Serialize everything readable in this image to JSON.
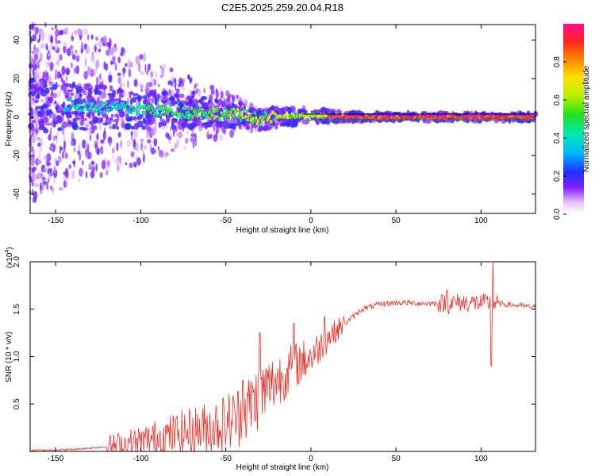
{
  "title": "C2E5.2025.259.20.04.R18",
  "chart_data": [
    {
      "type": "heatmap",
      "xlabel": "Height of straight line (km)",
      "ylabel": "Frequency (Hz)",
      "xlim": [
        -165,
        132
      ],
      "ylim": [
        -50,
        48
      ],
      "x_ticks": [
        -150,
        -100,
        -50,
        0,
        50,
        100
      ],
      "y_ticks": [
        -40,
        -20,
        0,
        20,
        40
      ],
      "colorbar": {
        "label": "Normalized spectral amplitude",
        "range": [
          0,
          1
        ],
        "ticks": [
          0.0,
          0.2,
          0.4,
          0.6,
          0.8
        ]
      },
      "reference_lines_hz": [
        -1.5,
        1.5
      ],
      "ridge": [
        {
          "x": -140,
          "f": 6
        },
        {
          "x": -120,
          "f": 5
        },
        {
          "x": -100,
          "f": 4
        },
        {
          "x": -80,
          "f": 3
        },
        {
          "x": -60,
          "f": 2
        },
        {
          "x": -40,
          "f": 1
        },
        {
          "x": -30,
          "f": -1
        },
        {
          "x": -20,
          "f": 0
        },
        {
          "x": 0,
          "f": 1
        },
        {
          "x": 20,
          "f": 0
        },
        {
          "x": 132,
          "f": 0
        }
      ]
    },
    {
      "type": "line",
      "xlabel": "Height of straight line (km)",
      "ylabel": "SNR (10 * v/v)",
      "y_multiplier_label": "(x10",
      "y_multiplier_exp": "4",
      "y_multiplier_close": ")",
      "xlim": [
        -165,
        132
      ],
      "ylim": [
        0,
        2.0
      ],
      "x_ticks": [
        -150,
        -100,
        -50,
        0,
        50,
        100
      ],
      "y_ticks": [
        0.5,
        1.0,
        1.5,
        2.0
      ],
      "series": [
        {
          "name": "SNR",
          "color": "#e8312a",
          "trend": [
            {
              "x": -165,
              "y": 0.01
            },
            {
              "x": -140,
              "y": 0.02
            },
            {
              "x": -120,
              "y": 0.05
            },
            {
              "x": -100,
              "y": 0.1
            },
            {
              "x": -80,
              "y": 0.18
            },
            {
              "x": -60,
              "y": 0.25
            },
            {
              "x": -50,
              "y": 0.3
            },
            {
              "x": -40,
              "y": 0.4
            },
            {
              "x": -30,
              "y": 0.6
            },
            {
              "x": -20,
              "y": 0.75
            },
            {
              "x": -10,
              "y": 0.9
            },
            {
              "x": 0,
              "y": 1.0
            },
            {
              "x": 10,
              "y": 1.2
            },
            {
              "x": 20,
              "y": 1.35
            },
            {
              "x": 30,
              "y": 1.5
            },
            {
              "x": 40,
              "y": 1.55
            },
            {
              "x": 50,
              "y": 1.57
            },
            {
              "x": 70,
              "y": 1.56
            },
            {
              "x": 90,
              "y": 1.57
            },
            {
              "x": 110,
              "y": 1.56
            },
            {
              "x": 132,
              "y": 1.52
            }
          ],
          "spikes": [
            {
              "x": -40,
              "y": 0.75
            },
            {
              "x": -30,
              "y": 1.25
            },
            {
              "x": -10,
              "y": 1.35
            },
            {
              "x": 8,
              "y": 1.42
            },
            {
              "x": 80,
              "y": 1.7
            },
            {
              "x": 81,
              "y": 1.45
            },
            {
              "x": 106,
              "y": 0.9
            },
            {
              "x": 107,
              "y": 2.0
            }
          ]
        }
      ]
    }
  ],
  "colors": {
    "line": "#e8312a",
    "ref_green": "#00a000",
    "ref_black": "#000000"
  }
}
